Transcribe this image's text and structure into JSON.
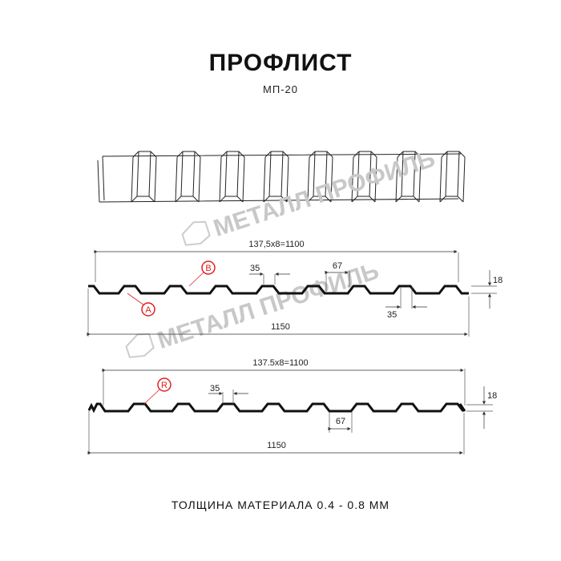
{
  "header": {
    "title": "ПРОФЛИСТ",
    "subtitle": "МП-20"
  },
  "watermark": {
    "text": "МЕТАЛЛ ПРОФИЛЬ",
    "color": "#c8c8c8"
  },
  "profile_a": {
    "overall_pitch": "137,5x8=1100",
    "total_width": "1150",
    "crest_width": "35",
    "crest_width_bottom": "35",
    "trough_width": "67",
    "height": "18",
    "markers": [
      "A",
      "B"
    ]
  },
  "profile_r": {
    "overall_pitch": "137.5x8=1100",
    "total_width": "1150",
    "crest_width": "35",
    "trough_width": "67",
    "height": "18",
    "markers": [
      "R"
    ]
  },
  "footer": {
    "thickness": "ТОЛЩИНА МАТЕРИАЛА 0.4 - 0.8 ММ"
  },
  "colors": {
    "line": "#111111",
    "marker": "#e02020",
    "dim": "#333333"
  }
}
